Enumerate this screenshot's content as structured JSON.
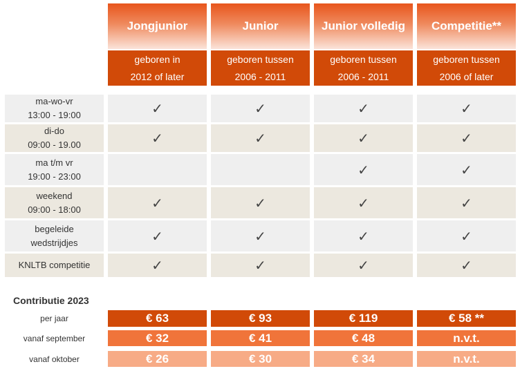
{
  "columns": [
    {
      "title": "Jongjunior",
      "line1": "geboren in",
      "line2": "2012 of later"
    },
    {
      "title": "Junior",
      "line1": "geboren tussen",
      "line2": "2006 - 2011"
    },
    {
      "title": "Junior volledig",
      "line1": "geboren tussen",
      "line2": "2006 - 2011"
    },
    {
      "title": "Competitie**",
      "line1": "geboren tussen",
      "line2": "2006 of later"
    }
  ],
  "check_glyph": "✓",
  "rows": [
    {
      "l1": "ma-wo-vr",
      "l2": "13:00 - 19:00",
      "checks": [
        true,
        true,
        true,
        true
      ]
    },
    {
      "l1": "di-do",
      "l2": "09:00 - 19.00",
      "checks": [
        true,
        true,
        true,
        true
      ]
    },
    {
      "l1": "ma t/m vr",
      "l2": "19:00 - 23:00",
      "checks": [
        false,
        false,
        true,
        true
      ]
    },
    {
      "l1": "weekend",
      "l2": "09:00 - 18:00",
      "checks": [
        true,
        true,
        true,
        true
      ]
    },
    {
      "l1": "begeleide",
      "l2": "wedstrijdjes",
      "checks": [
        true,
        true,
        true,
        true
      ]
    },
    {
      "l1": "KNLTB competitie",
      "l2": "",
      "checks": [
        true,
        true,
        true,
        true
      ]
    }
  ],
  "contributie": {
    "title": "Contributie 2023",
    "rows": [
      {
        "label": "per jaar",
        "values": [
          "€ 63",
          "€ 93",
          "€ 119",
          "€ 58 **"
        ]
      },
      {
        "label": "vanaf september",
        "values": [
          "€ 32",
          "€ 41",
          "€ 48",
          "n.v.t."
        ]
      },
      {
        "label": "vanaf oktober",
        "values": [
          "€ 26",
          "€ 30",
          "€ 34",
          "n.v.t."
        ]
      }
    ]
  },
  "colors": {
    "header_dark": "#d14a08",
    "price_mid": "#f0743a",
    "price_light": "#f7ab86"
  }
}
